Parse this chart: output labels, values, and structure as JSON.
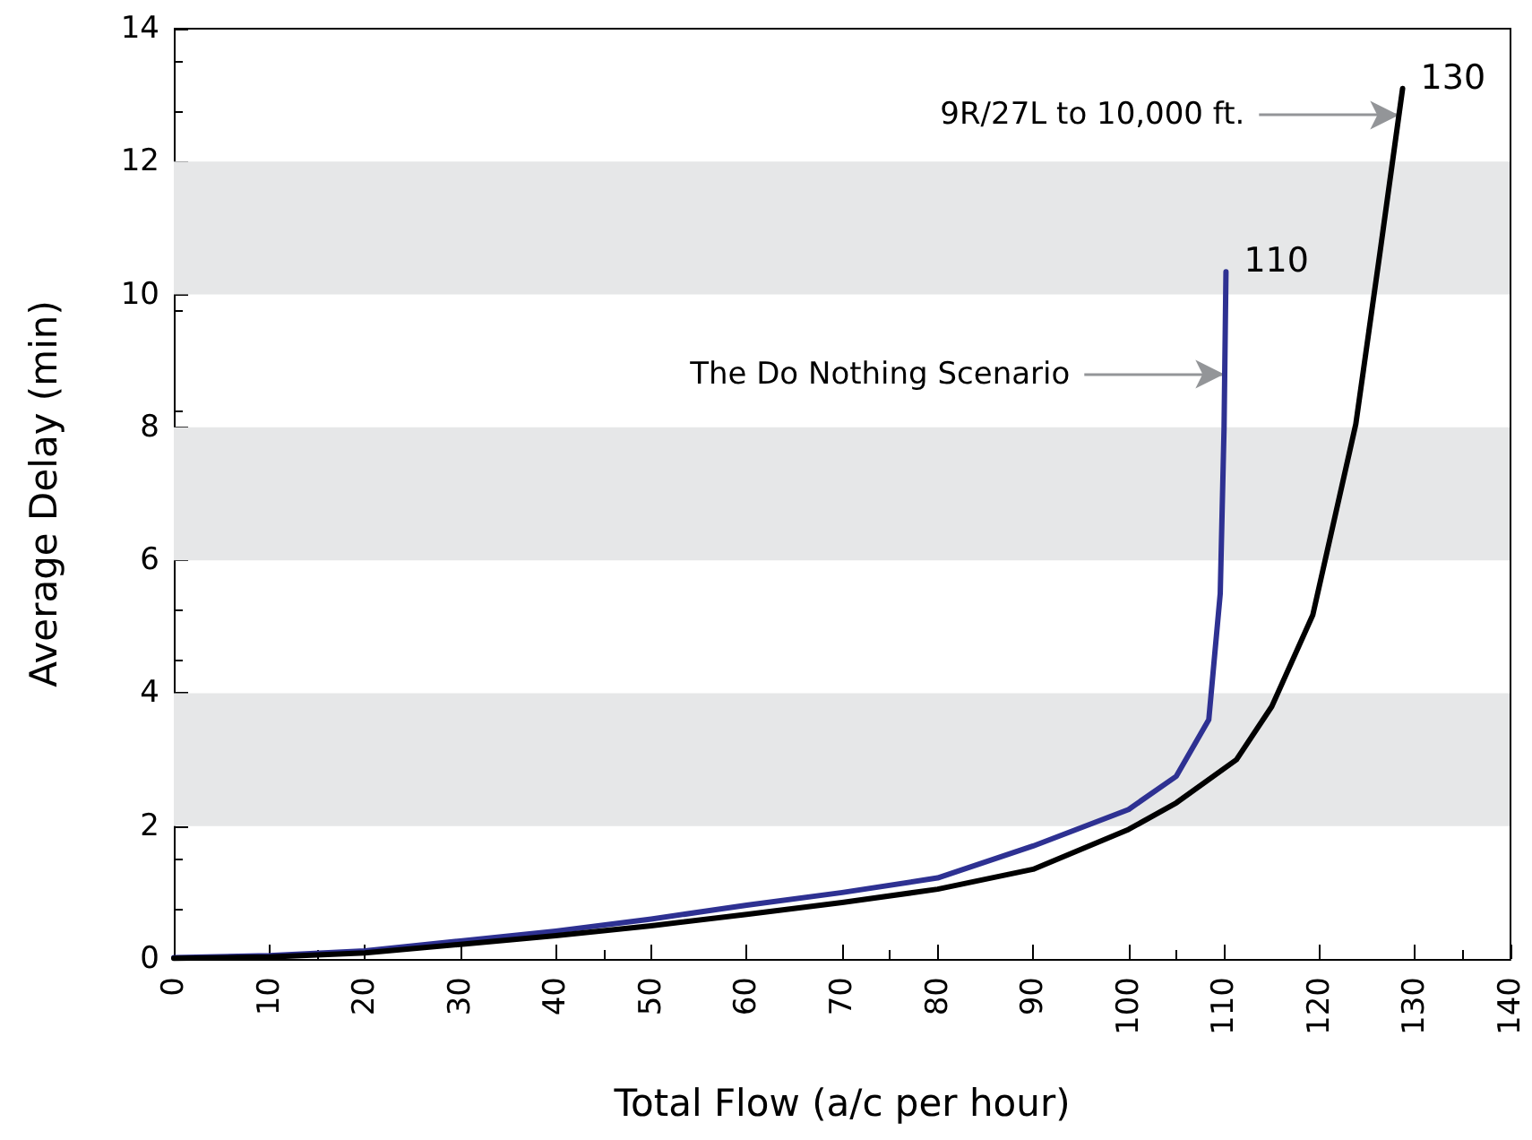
{
  "chart_data": {
    "type": "line",
    "xlabel": "Total Flow (a/c per hour)",
    "ylabel": "Average Delay (min)",
    "xlim": [
      0,
      140
    ],
    "xticks": [
      0,
      10,
      20,
      30,
      40,
      50,
      60,
      70,
      80,
      90,
      100,
      110,
      120,
      130,
      140
    ],
    "ylim": [
      0,
      14
    ],
    "yticks": [
      0,
      2,
      4,
      6,
      8,
      10,
      12,
      14
    ],
    "grid": false,
    "legend": false,
    "marker": "none",
    "line_style": "solid",
    "bands": [
      {
        "axis": "y",
        "from": 2,
        "to": 4,
        "color": "#e6e7e8"
      },
      {
        "axis": "y",
        "from": 6,
        "to": 8,
        "color": "#e6e7e8"
      },
      {
        "axis": "y",
        "from": 10,
        "to": 12,
        "color": "#e6e7e8"
      }
    ],
    "annotations": [
      {
        "text": "The Do Nothing Scenario",
        "x": 110,
        "y": 8.8
      },
      {
        "text": "9R/27L to 10,000 ft.",
        "x": 128.3,
        "y": 12.7
      }
    ],
    "series": [
      {
        "name": "110",
        "color": "#2e3192",
        "x": [
          0,
          10,
          20,
          30,
          40,
          50,
          60,
          70,
          80,
          90,
          100,
          105,
          108.4,
          109.6,
          110,
          110.2
        ],
        "values": [
          0.02,
          0.05,
          0.12,
          0.27,
          0.42,
          0.6,
          0.81,
          1.0,
          1.22,
          1.7,
          2.25,
          2.75,
          3.6,
          5.5,
          8,
          10.34
        ]
      },
      {
        "name": "130",
        "color": "#000000",
        "x": [
          0,
          10,
          20,
          30,
          40,
          50,
          60,
          70,
          80,
          90,
          100,
          105,
          111.3,
          115,
          119.3,
          123.8,
          126.3,
          128.7
        ],
        "values": [
          0.01,
          0.03,
          0.09,
          0.22,
          0.35,
          0.5,
          0.67,
          0.85,
          1.05,
          1.35,
          1.95,
          2.35,
          3.0,
          3.8,
          5.18,
          8.05,
          10.6,
          13.1
        ]
      }
    ]
  }
}
